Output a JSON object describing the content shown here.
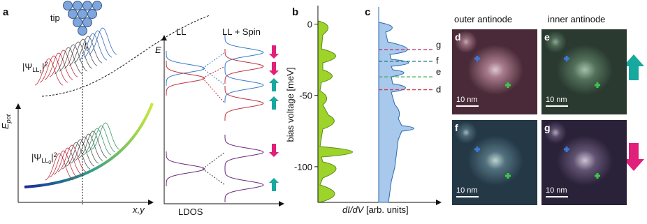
{
  "panel_a": {
    "label": "a",
    "tip": "tip",
    "current": [
      "I",
      "t"
    ],
    "psi_ll1": [
      "|Ψ",
      "LL",
      "1",
      "|",
      "2"
    ],
    "psi_ll0": [
      "|Ψ",
      "LL",
      "0",
      "|",
      "2"
    ],
    "e_pot": [
      "E",
      "pot"
    ],
    "x_axis": "x,y",
    "ll": "LL",
    "ll_spin": "LL + Spin",
    "e_axis": "E",
    "ldos": "LDOS"
  },
  "panel_b": {
    "label": "b",
    "ylabel": "bias voltage [meV]",
    "ylim": [
      -125,
      12
    ],
    "yticks": [
      0,
      -50,
      -100
    ]
  },
  "panel_c": {
    "label": "c",
    "xlabel": [
      "dI/dV",
      " [arb. units]"
    ],
    "markers": [
      {
        "label": "g",
        "value": -18,
        "color": "#c0306a"
      },
      {
        "label": "f",
        "value": -26,
        "color": "#1a7a80"
      },
      {
        "label": "e",
        "value": -37,
        "color": "#3aa84a"
      },
      {
        "label": "d",
        "value": -46,
        "color": "#d03a4a"
      }
    ]
  },
  "images": {
    "outer": "outer antinode",
    "inner": "inner antinode",
    "tiles": [
      {
        "label": "d",
        "scale": "10 nm"
      },
      {
        "label": "e",
        "scale": "10 nm"
      },
      {
        "label": "f",
        "scale": "10 nm"
      },
      {
        "label": "g",
        "scale": "10 nm"
      }
    ]
  }
}
